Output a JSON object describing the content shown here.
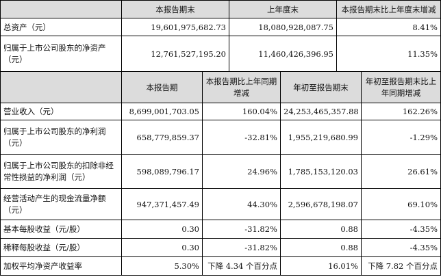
{
  "top_table": {
    "headers": [
      "",
      "本报告期末",
      "上年度末",
      "本报告期末比上年度末增减"
    ],
    "rows": [
      {
        "label": "总资产（元）",
        "current": "19,601,975,682.73",
        "prior": "18,080,928,087.75",
        "change": "8.41%"
      },
      {
        "label": "归属于上市公司股东的净资产（元）",
        "current": "12,761,527,195.20",
        "prior": "11,460,426,396.95",
        "change": "11.35%"
      }
    ]
  },
  "bottom_table": {
    "headers": [
      "",
      "本报告期",
      "本报告期比上年同期增减",
      "年初至报告期末",
      "年初至报告期末比上年同期增减"
    ],
    "rows": [
      {
        "label": "营业收入（元）",
        "period": "8,699,001,703.05",
        "period_change": "160.04%",
        "ytd": "24,253,465,357.88",
        "ytd_change": "162.26%"
      },
      {
        "label": "归属于上市公司股东的净利润（元）",
        "period": "658,779,859.37",
        "period_change": "-32.81%",
        "ytd": "1,955,219,680.99",
        "ytd_change": "-1.29%"
      },
      {
        "label": "归属于上市公司股东的扣除非经常性损益的净利润（元）",
        "period": "598,089,796.17",
        "period_change": "24.96%",
        "ytd": "1,785,153,120.03",
        "ytd_change": "26.61%"
      },
      {
        "label": "经营活动产生的现金流量净额（元）",
        "period": "947,371,457.49",
        "period_change": "44.30%",
        "ytd": "2,596,678,198.07",
        "ytd_change": "69.10%"
      },
      {
        "label": "基本每股收益（元/股）",
        "period": "0.30",
        "period_change": "-31.82%",
        "ytd": "0.88",
        "ytd_change": "-4.35%"
      },
      {
        "label": "稀释每股收益（元/股）",
        "period": "0.30",
        "period_change": "-31.82%",
        "ytd": "0.88",
        "ytd_change": "-4.35%"
      },
      {
        "label": "加权平均净资产收益率",
        "period": "5.30%",
        "period_change": "下降 4.34 个百分点",
        "ytd": "16.01%",
        "ytd_change": "下降 7.82 个百分点"
      }
    ]
  },
  "colors": {
    "header_bg": "#dcdcdc",
    "border": "#000000"
  }
}
